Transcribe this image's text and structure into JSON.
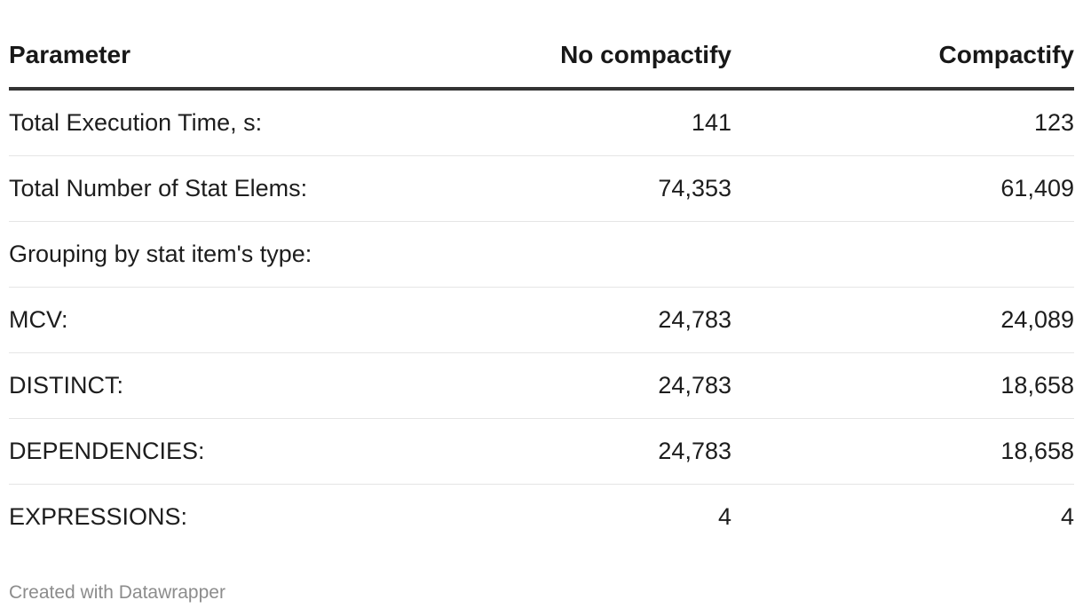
{
  "chart_data": {
    "type": "table",
    "columns": [
      "Parameter",
      "No compactify",
      "Compactify"
    ],
    "rows": [
      [
        "Total Execution Time, s:",
        "141",
        "123"
      ],
      [
        "Total Number of Stat Elems:",
        "74,353",
        "61,409"
      ],
      [
        "Grouping by stat item's type:",
        "",
        ""
      ],
      [
        "MCV:",
        "24,783",
        "24,089"
      ],
      [
        "DISTINCT:",
        "24,783",
        "18,658"
      ],
      [
        "DEPENDENCIES:",
        "24,783",
        "18,658"
      ],
      [
        "EXPRESSIONS:",
        "4",
        "4"
      ]
    ]
  },
  "footer": {
    "credit": "Created with Datawrapper"
  }
}
